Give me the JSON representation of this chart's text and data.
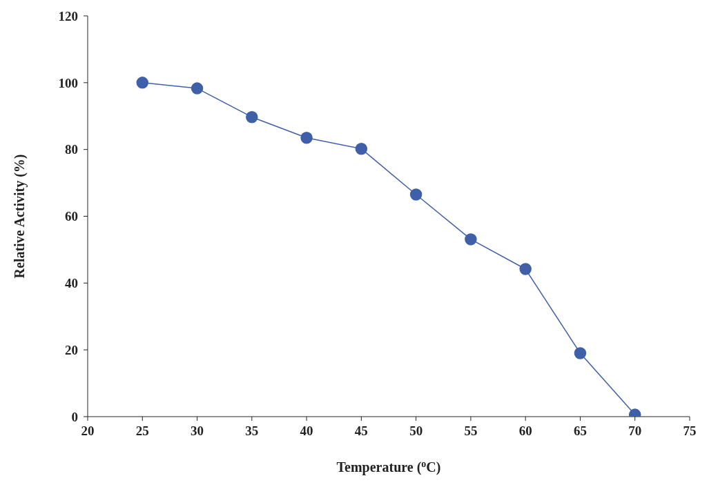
{
  "chart_data": {
    "type": "line",
    "xlabel": "Temperature ($^{o}$C)",
    "ylabel": "Relative Activity (%)",
    "x": [
      25,
      30,
      35,
      40,
      45,
      50,
      55,
      60,
      65,
      70
    ],
    "values": [
      100,
      98.3,
      89.7,
      83.5,
      80.2,
      66.5,
      53.1,
      44.2,
      19,
      0.6
    ],
    "color": "#3f5fa8",
    "marker": "circle",
    "line_style": "solid",
    "grid": false,
    "legend": false,
    "xlim": [
      20,
      75
    ],
    "xticks": [
      20,
      25,
      30,
      35,
      40,
      45,
      50,
      55,
      60,
      65,
      70,
      75
    ],
    "ylim": [
      0,
      120
    ],
    "yticks": [
      0,
      20,
      40,
      60,
      80,
      100,
      120
    ]
  }
}
